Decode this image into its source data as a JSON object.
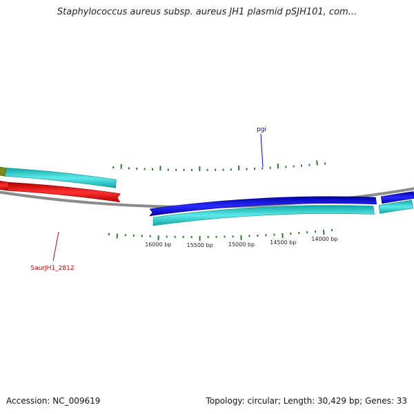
{
  "title": "Staphylococcus aureus subsp. aureus JH1 plasmid pSJH101, com...",
  "position_labels": [
    {
      "bp": 16000,
      "text": "16000 bp"
    },
    {
      "bp": 15500,
      "text": "15500 bp"
    },
    {
      "bp": 15000,
      "text": "15000 bp"
    },
    {
      "bp": 14500,
      "text": "14500 bp"
    },
    {
      "bp": 14000,
      "text": "14000 bp"
    }
  ],
  "gene_labels": [
    {
      "name": "pgi",
      "color": "#0000cc"
    },
    {
      "name": "SaurJH1_2812",
      "color": "#cc0000"
    }
  ],
  "footer": {
    "accession": "Accession: NC_009619",
    "summary": "Topology: circular; Length: 30,429 bp; Genes: 33"
  },
  "colors": {
    "backbone": "#8a8a8a",
    "cds_cyan": "#19c8c8",
    "gene_blue": "#0000e0",
    "gene_red": "#ee0000",
    "other_olive": "#7a8a1a",
    "tick_green": "#2a7a2a"
  },
  "topology": "circular",
  "length_bp": 30429,
  "gene_count": 33
}
